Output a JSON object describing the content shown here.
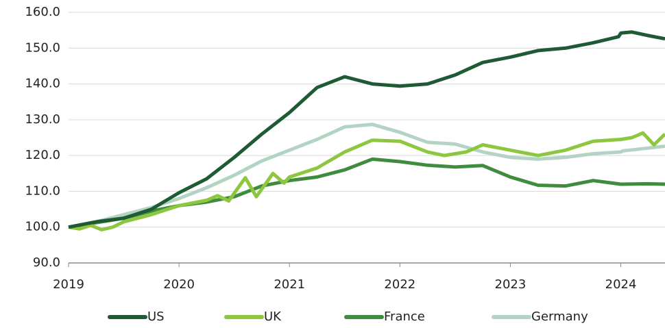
{
  "chart_data": {
    "type": "line",
    "xlim": [
      2019,
      2024.4
    ],
    "xticks": [
      2019,
      2020,
      2021,
      2022,
      2023,
      2024
    ],
    "ylim": [
      90,
      160
    ],
    "yticks": [
      {
        "value": 90,
        "label": "90.0"
      },
      {
        "value": 100,
        "label": "100.0"
      },
      {
        "value": 110,
        "label": "110.0"
      },
      {
        "value": 120,
        "label": "120.0"
      },
      {
        "value": 130,
        "label": "130.0"
      },
      {
        "value": 140,
        "label": "140.0"
      },
      {
        "value": 150,
        "label": "150.0"
      },
      {
        "value": 160,
        "label": "160.0"
      }
    ],
    "grid": true,
    "legend": "bottom",
    "series": [
      {
        "name": "US",
        "color": "#1e5b34",
        "x": [
          2019,
          2019.25,
          2019.5,
          2019.75,
          2020,
          2020.25,
          2020.5,
          2020.75,
          2021,
          2021.25,
          2021.5,
          2021.75,
          2022,
          2022.25,
          2022.5,
          2022.75,
          2023,
          2023.25,
          2023.5,
          2023.75,
          2023.98,
          2024,
          2024.1,
          2024.25,
          2024.4
        ],
        "values": [
          100,
          101.5,
          102.5,
          105,
          109.6,
          113.5,
          119.5,
          126,
          132,
          139,
          142,
          140,
          139.4,
          140,
          142.5,
          146,
          147.5,
          149.3,
          150,
          151.5,
          153.2,
          154.2,
          154.5,
          153.5,
          152.6
        ]
      },
      {
        "name": "UK",
        "color": "#8dc63f",
        "x": [
          2019,
          2019.1,
          2019.2,
          2019.3,
          2019.4,
          2019.5,
          2019.75,
          2020,
          2020.25,
          2020.35,
          2020.45,
          2020.6,
          2020.7,
          2020.85,
          2020.95,
          2021,
          2021.25,
          2021.5,
          2021.75,
          2022,
          2022.25,
          2022.4,
          2022.6,
          2022.75,
          2023,
          2023.25,
          2023.5,
          2023.75,
          2024,
          2024.1,
          2024.2,
          2024.3,
          2024.4
        ],
        "values": [
          100,
          99.5,
          100.5,
          99.3,
          100,
          101.5,
          103.5,
          106,
          107.5,
          108.8,
          107.3,
          113.8,
          108.5,
          115,
          112.3,
          114,
          116.5,
          121,
          124.3,
          124,
          121,
          120,
          121,
          123,
          121.5,
          120,
          121.5,
          124,
          124.5,
          125,
          126.3,
          123,
          126
        ]
      },
      {
        "name": "France",
        "color": "#3f8c3f",
        "x": [
          2019,
          2019.5,
          2019.75,
          2020,
          2020.25,
          2020.5,
          2020.75,
          2021,
          2021.25,
          2021.5,
          2021.75,
          2022,
          2022.25,
          2022.5,
          2022.75,
          2023,
          2023.25,
          2023.5,
          2023.75,
          2024,
          2024.25,
          2024.4
        ],
        "values": [
          100,
          102.5,
          104.5,
          106,
          107,
          108.5,
          111.5,
          113,
          114,
          116,
          119,
          118.3,
          117.3,
          116.8,
          117.2,
          114,
          111.7,
          111.5,
          113,
          112,
          112.1,
          112
        ]
      },
      {
        "name": "Germany",
        "color": "#b3d4c3",
        "x": [
          2019,
          2019.25,
          2019.5,
          2019.75,
          2020,
          2020.25,
          2020.5,
          2020.75,
          2021,
          2021.25,
          2021.5,
          2021.75,
          2022,
          2022.25,
          2022.5,
          2022.75,
          2023,
          2023.25,
          2023.5,
          2023.75,
          2024,
          2024.02,
          2024.4
        ],
        "values": [
          100,
          101.5,
          103.5,
          105.5,
          108,
          111,
          114.5,
          118.5,
          121.5,
          124.5,
          128,
          128.7,
          126.5,
          123.7,
          123.2,
          121,
          119.5,
          119,
          119.5,
          120.5,
          121,
          121.3,
          122.6
        ]
      }
    ]
  }
}
